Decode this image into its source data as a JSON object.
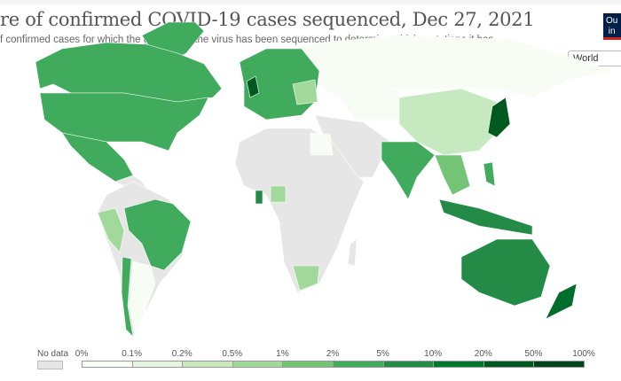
{
  "header": {
    "title": "re of confirmed COVID-19 cases sequenced, Dec 27, 2021",
    "subtitle": "f confirmed cases for which the genome of the virus has been sequenced to determine which mutations it has.",
    "logo_text": "Our World in Data"
  },
  "region_select": {
    "value": "World"
  },
  "legend": {
    "no_data_label": "No data",
    "no_data_color": "#e6e6e6",
    "ticks": [
      "0%",
      "0.1%",
      "0.2%",
      "0.5%",
      "1%",
      "2%",
      "5%",
      "10%",
      "20%",
      "50%",
      "100%"
    ],
    "colors": [
      "#f7fcf5",
      "#e5f5e0",
      "#c7e9c0",
      "#a1d99b",
      "#74c476",
      "#41ab5d",
      "#238b45",
      "#00782f",
      "#00591f",
      "#00441b"
    ]
  }
}
